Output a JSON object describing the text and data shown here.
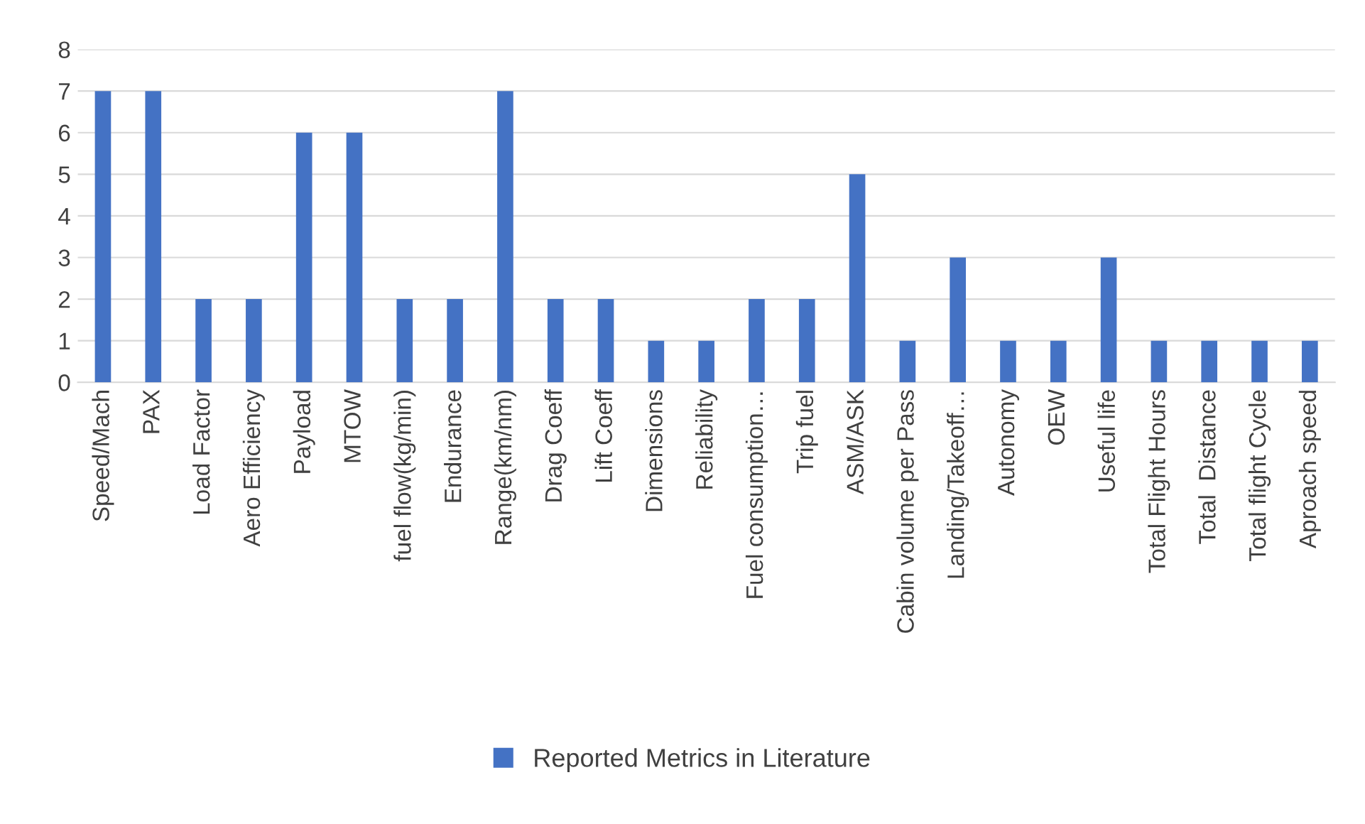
{
  "chart_data": {
    "type": "bar",
    "categories": [
      "Speed/Mach",
      "PAX",
      "Load Factor",
      "Aero Efficiency",
      "Payload",
      "MTOW",
      "fuel flow(kg/min)",
      "Endurance",
      "Range(km/nm)",
      "Drag Coeff",
      "Lift Coeff",
      "Dimensions",
      "Reliability",
      "Fuel consumption…",
      "Trip fuel",
      "ASM/ASK",
      "Cabin volume per Pass",
      "Landing/Takeoff…",
      "Autonomy",
      "OEW",
      "Useful life",
      "Total Flight Hours",
      "Total  Distance",
      "Total flight Cycle",
      "Aproach speed"
    ],
    "series": [
      {
        "name": "Reported Metrics in Literature",
        "color": "#4472c4",
        "values": [
          7,
          7,
          2,
          2,
          6,
          6,
          2,
          2,
          7,
          2,
          2,
          1,
          1,
          2,
          2,
          5,
          1,
          3,
          1,
          1,
          3,
          1,
          1,
          1,
          1
        ]
      }
    ],
    "ylim": [
      0,
      8
    ],
    "yticks": [
      0,
      1,
      2,
      3,
      4,
      5,
      6,
      7,
      8
    ],
    "grid": "y",
    "legend": "bottom"
  }
}
